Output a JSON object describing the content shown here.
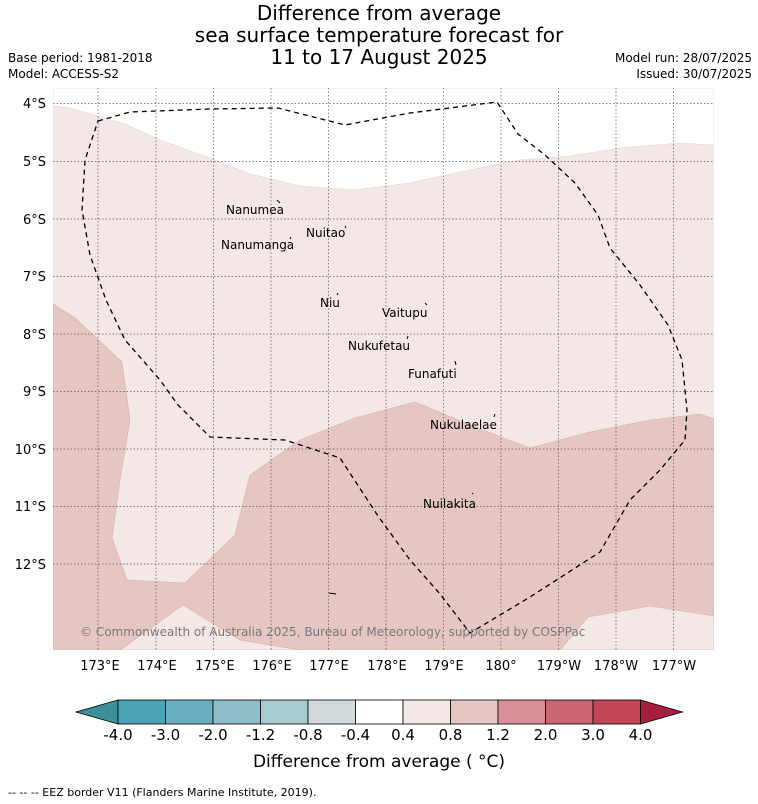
{
  "title_lines": [
    "Difference from average",
    "sea surface temperature forecast for",
    "11 to 17 August 2025"
  ],
  "base_period": "Base period: 1981-2018",
  "model": "Model: ACCESS-S2",
  "model_run": "Model run: 28/07/2025",
  "issued": "Issued: 30/07/2025",
  "lat_labels": [
    "4°S",
    "5°S",
    "6°S",
    "7°S",
    "8°S",
    "9°S",
    "10°S",
    "11°S",
    "12°S"
  ],
  "lon_labels": [
    "173°E",
    "174°E",
    "175°E",
    "176°E",
    "177°E",
    "178°E",
    "179°E",
    "180°",
    "179°W",
    "178°W",
    "177°W"
  ],
  "places": [
    "Nanumea",
    "Nuitao",
    "Nanumanga",
    "Niu",
    "Vaitupu",
    "Nukufetau",
    "Funafuti",
    "Nukulaelae",
    "Nuilakita"
  ],
  "copyright": "© Commonwealth of Australia 2025, Bureau of Meteorology, supported by COSPPac",
  "colorbar": {
    "ticks": [
      "-4.0",
      "-3.0",
      "-2.0",
      "-1.2",
      "-0.8",
      "-0.4",
      "0.4",
      "0.8",
      "1.2",
      "2.0",
      "3.0",
      "4.0"
    ],
    "colors": [
      "#3c8e9b",
      "#49a3b4",
      "#6aafbf",
      "#8dbdc8",
      "#a9cace",
      "#d1dadc",
      "#ffffff",
      "#f4e8e6",
      "#e6c6c2",
      "#d88f98",
      "#cc6670",
      "#c04555",
      "#a81f3e"
    ],
    "title": "Difference from average ( °C)"
  },
  "footer": "-- -- -- EEZ border V11 (Flanders Marine Institute, 2019)."
}
